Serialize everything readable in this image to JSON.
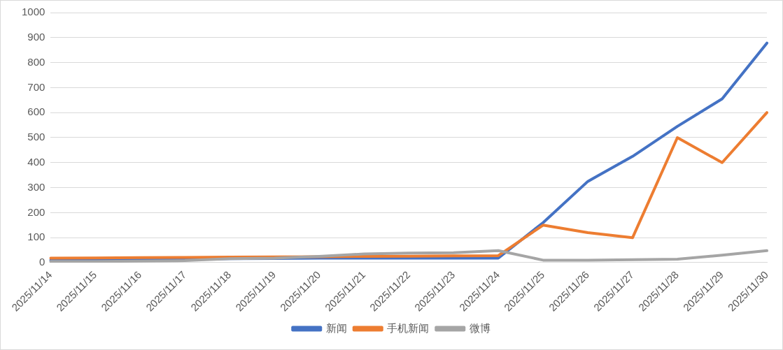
{
  "chart_data": {
    "type": "line",
    "categories": [
      "2025/11/14",
      "2025/11/15",
      "2025/11/16",
      "2025/11/17",
      "2025/11/18",
      "2025/11/19",
      "2025/11/20",
      "2025/11/21",
      "2025/11/22",
      "2025/11/23",
      "2025/11/24",
      "2025/11/25",
      "2025/11/26",
      "2025/11/27",
      "2025/11/28",
      "2025/11/29",
      "2025/11/30"
    ],
    "series": [
      {
        "name": "新闻",
        "color": "#4472c4",
        "values": [
          10,
          12,
          12,
          14,
          16,
          17,
          18,
          18,
          18,
          18,
          18,
          160,
          325,
          425,
          545,
          655,
          878
        ]
      },
      {
        "name": "手机新闻",
        "color": "#ed7d31",
        "values": [
          18,
          19,
          20,
          21,
          22,
          23,
          24,
          25,
          26,
          27,
          28,
          150,
          120,
          100,
          500,
          400,
          600
        ]
      },
      {
        "name": "微博",
        "color": "#a5a5a5",
        "values": [
          5,
          5,
          6,
          8,
          16,
          18,
          25,
          35,
          38,
          40,
          48,
          10,
          10,
          12,
          14,
          30,
          48
        ]
      }
    ],
    "ylim": [
      0,
      1000
    ],
    "yticks": [
      0,
      100,
      200,
      300,
      400,
      500,
      600,
      700,
      800,
      900,
      1000
    ],
    "grid": "y",
    "legend": "bottom",
    "marker": "none",
    "line_style": "solid"
  }
}
